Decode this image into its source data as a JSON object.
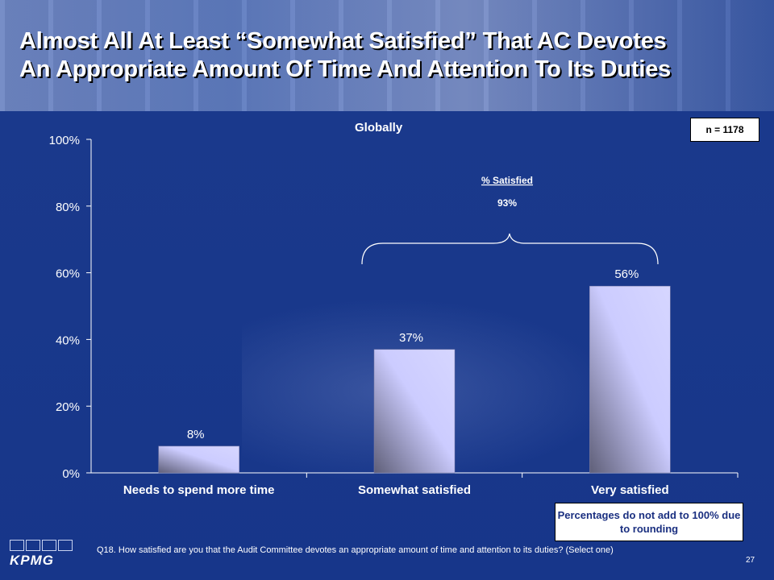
{
  "title_lines": [
    "Almost All At Least “Somewhat Satisfied” That AC  Devotes",
    "An Appropriate Amount Of Time And Attention To Its Duties"
  ],
  "n_label": "n = 1178",
  "note": "Percentages do not add to 100% due to rounding",
  "question": "Q18. How satisfied are you that the Audit Committee devotes an appropriate amount of time and attention to its duties? (Select one)",
  "page_number": "27",
  "logo_text": "KPMG",
  "colors": {
    "background": "#17368a",
    "bar_light": "#ccccff",
    "bar_dark": "#6b6b80"
  },
  "chart_data": {
    "type": "bar",
    "title": "Globally",
    "categories": [
      "Needs to spend more time",
      "Somewhat satisfied",
      "Very satisfied"
    ],
    "values": [
      8,
      37,
      56
    ],
    "data_labels": [
      "8%",
      "37%",
      "56%"
    ],
    "ylim": [
      0,
      100
    ],
    "yticks": [
      0,
      20,
      40,
      60,
      80,
      100
    ],
    "ytick_labels": [
      "0%",
      "20%",
      "40%",
      "60%",
      "80%",
      "100%"
    ],
    "xlabel": "",
    "ylabel": "",
    "annotation": {
      "label": "% Satisfied",
      "value": "93%"
    }
  }
}
